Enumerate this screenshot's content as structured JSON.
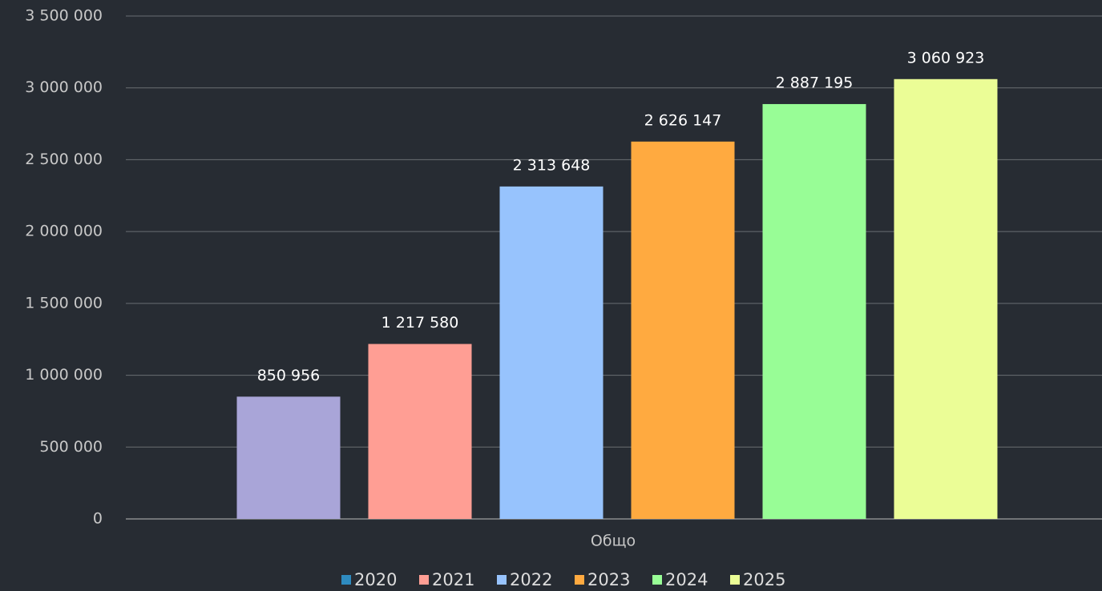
{
  "chart_data": {
    "type": "bar",
    "categories": [
      "Общо"
    ],
    "series": [
      {
        "name": "2020",
        "color": "#a9a5d8",
        "legend_color": "#2e8bc0",
        "values": [
          850956
        ],
        "value_labels": [
          "850 956"
        ]
      },
      {
        "name": "2021",
        "color": "#ff9e94",
        "values": [
          1217580
        ],
        "value_labels": [
          "1 217 580"
        ]
      },
      {
        "name": "2022",
        "color": "#97c3fd",
        "values": [
          2313648
        ],
        "value_labels": [
          "2 313 648"
        ]
      },
      {
        "name": "2023",
        "color": "#ffaa40",
        "values": [
          2626147
        ],
        "value_labels": [
          "2 626 147"
        ]
      },
      {
        "name": "2024",
        "color": "#98fd96",
        "values": [
          2887195
        ],
        "value_labels": [
          "2 887 195"
        ]
      },
      {
        "name": "2025",
        "color": "#ebfd96",
        "values": [
          3060923
        ],
        "value_labels": [
          "3 060 923"
        ]
      }
    ],
    "ylim": [
      0,
      3500000
    ],
    "yticks": [
      0,
      {
        "value": 500000,
        "label": "500 000"
      },
      {
        "value": 1000000,
        "label": "1 000 000"
      },
      {
        "value": 1500000,
        "label": "1 500 000"
      },
      {
        "value": 2000000,
        "label": "2 000 000"
      },
      {
        "value": 2500000,
        "label": "2 500 000"
      },
      {
        "value": 3000000,
        "label": "3 000 000"
      },
      {
        "value": 3500000,
        "label": "3 500 000"
      }
    ],
    "grid": true,
    "legend": "bottom"
  }
}
